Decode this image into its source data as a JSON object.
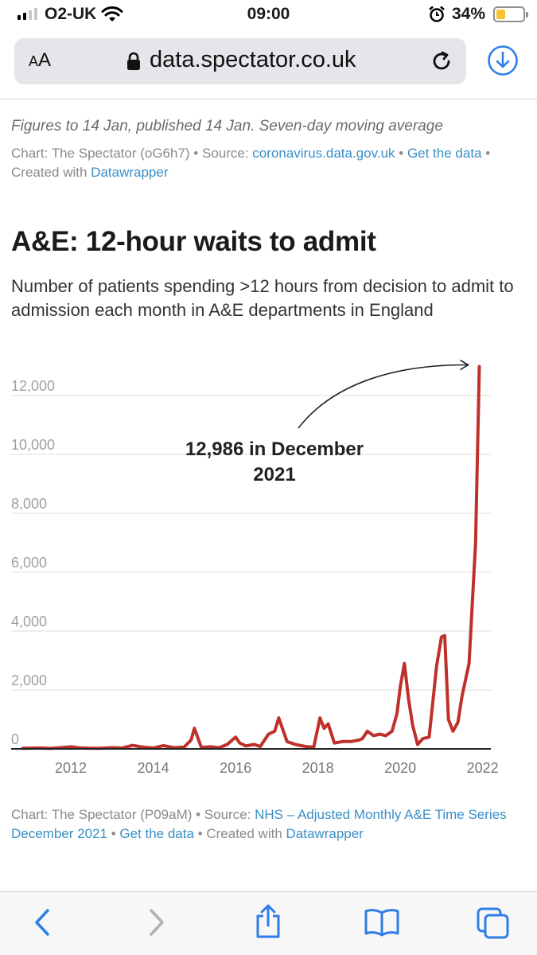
{
  "status_bar": {
    "carrier": "O2-UK",
    "time": "09:00",
    "battery_percent": "34%",
    "battery_level": 0.34
  },
  "browser": {
    "aa_label_small": "A",
    "aa_label_large": "A",
    "url": "data.spectator.co.uk"
  },
  "previous_chart_footer": {
    "note": "Figures to 14 Jan, published 14 Jan. Seven-day moving average",
    "credit_prefix": "Chart: The Spectator (oG6h7) • Source: ",
    "source_link": "coronavirus.data.gov.uk",
    "sep1": " • ",
    "get_data_link": "Get the data",
    "sep2": " • Created with ",
    "datawrapper_link": "Datawrapper"
  },
  "chart_data": {
    "type": "line",
    "title": "A&E: 12-hour waits to admit",
    "subtitle": "Number of patients spending >12 hours from decision to admit to admission each month in A&E departments in England",
    "xlabel": "",
    "ylabel": "",
    "xlim": [
      2010.55,
      2022.2
    ],
    "ylim": [
      0,
      13000
    ],
    "x_ticks": [
      2012,
      2014,
      2016,
      2018,
      2020,
      2022
    ],
    "x_tick_labels": [
      "2012",
      "2014",
      "2016",
      "2018",
      "2020",
      "2022"
    ],
    "y_ticks": [
      0,
      2000,
      4000,
      6000,
      8000,
      10000,
      12000
    ],
    "y_tick_labels": [
      "0",
      "2,000",
      "4,000",
      "6,000",
      "8,000",
      "10,000",
      "12,000"
    ],
    "grid": true,
    "annotation": {
      "line1": "12,986 in December",
      "line2": "2021",
      "x": 2021.92,
      "y": 12986
    },
    "series": [
      {
        "name": "12-hour waits",
        "color": "#c0302b",
        "x": [
          2010.83,
          2011.0,
          2011.25,
          2011.5,
          2011.75,
          2012.0,
          2012.25,
          2012.5,
          2012.75,
          2013.0,
          2013.25,
          2013.5,
          2013.75,
          2014.0,
          2014.25,
          2014.5,
          2014.75,
          2014.92,
          2015.0,
          2015.17,
          2015.4,
          2015.6,
          2015.8,
          2016.0,
          2016.1,
          2016.25,
          2016.45,
          2016.6,
          2016.8,
          2016.95,
          2017.05,
          2017.25,
          2017.45,
          2017.7,
          2017.9,
          2018.05,
          2018.15,
          2018.25,
          2018.4,
          2018.6,
          2018.8,
          2019.0,
          2019.08,
          2019.2,
          2019.35,
          2019.5,
          2019.65,
          2019.8,
          2019.92,
          2020.0,
          2020.1,
          2020.2,
          2020.3,
          2020.42,
          2020.55,
          2020.7,
          2020.8,
          2020.88,
          2021.0,
          2021.08,
          2021.17,
          2021.28,
          2021.4,
          2021.5,
          2021.67,
          2021.83,
          2021.92
        ],
        "values": [
          20,
          25,
          30,
          15,
          40,
          70,
          30,
          20,
          25,
          40,
          30,
          120,
          60,
          30,
          110,
          40,
          60,
          300,
          700,
          50,
          70,
          40,
          150,
          400,
          200,
          100,
          150,
          80,
          500,
          600,
          1050,
          250,
          150,
          80,
          60,
          1050,
          700,
          850,
          200,
          250,
          250,
          300,
          350,
          600,
          450,
          500,
          450,
          600,
          1200,
          2100,
          2900,
          1700,
          800,
          150,
          350,
          400,
          1700,
          2800,
          3800,
          3850,
          1000,
          600,
          900,
          1800,
          2900,
          7000,
          12986
        ]
      }
    ]
  },
  "chart_footer": {
    "credit_prefix": "Chart: The Spectator (P09aM) • Source: ",
    "source_link": "NHS – Adjusted Monthly A&E Time Series December 2021",
    "sep1": " • ",
    "get_data_link": "Get the data",
    "sep2": " • Created with ",
    "datawrapper_link": "Datawrapper"
  }
}
